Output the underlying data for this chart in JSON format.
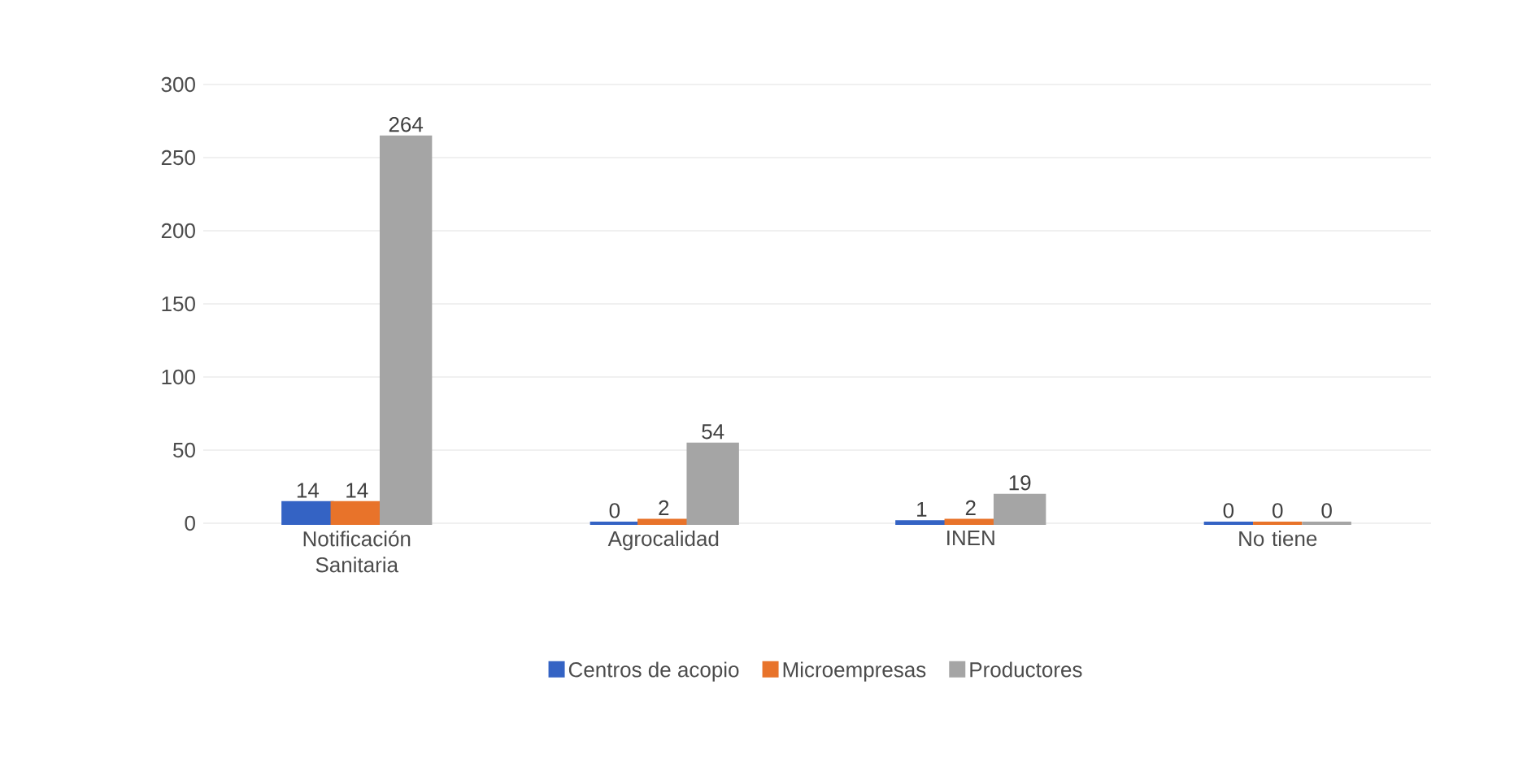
{
  "chart_data": {
    "type": "bar",
    "categories": [
      "Notificación Sanitaria",
      "Agrocalidad",
      "INEN",
      "No tiene"
    ],
    "series": [
      {
        "name": "Centros de acopio",
        "color": "#3463c4",
        "values": [
          14,
          0,
          1,
          0
        ]
      },
      {
        "name": "Microempresas",
        "color": "#e8732a",
        "values": [
          14,
          2,
          2,
          0
        ]
      },
      {
        "name": "Productores",
        "color": "#a5a5a5",
        "values": [
          264,
          54,
          19,
          0
        ]
      }
    ],
    "ylim": [
      0,
      300
    ],
    "yticks": [
      0,
      50,
      100,
      150,
      200,
      250,
      300
    ],
    "grid": "y",
    "legend": "bottom",
    "data_labels": true
  }
}
